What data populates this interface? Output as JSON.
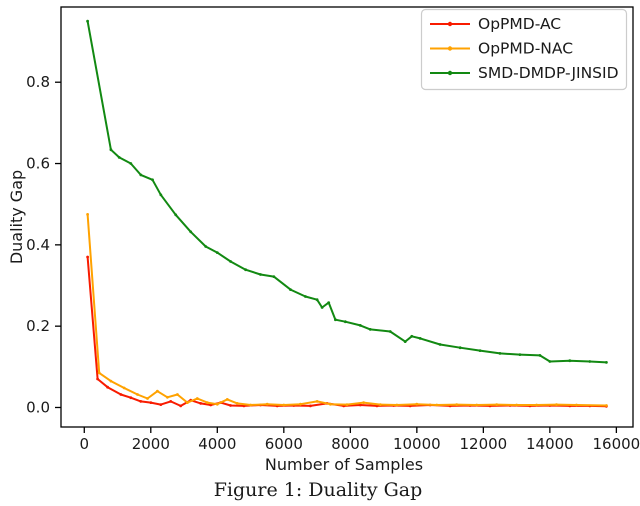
{
  "figure": {
    "caption": "Figure 1: Duality Gap",
    "background": "#ffffff",
    "spine_color": "#000000"
  },
  "chart_data": {
    "type": "line",
    "title": "",
    "xlabel": "Number of Samples",
    "ylabel": "Duality Gap",
    "xlim": [
      -700,
      16500
    ],
    "ylim": [
      -0.048,
      0.985
    ],
    "xticks": [
      0,
      2000,
      4000,
      6000,
      8000,
      10000,
      12000,
      14000,
      16000
    ],
    "xticklabels": [
      "0",
      "2000",
      "4000",
      "6000",
      "8000",
      "10000",
      "12000",
      "14000",
      "16000"
    ],
    "yticks": [
      0.0,
      0.2,
      0.4,
      0.6,
      0.8
    ],
    "yticklabels": [
      "0.0",
      "0.2",
      "0.4",
      "0.6",
      "0.8"
    ],
    "grid": false,
    "legend_position": "upper right",
    "marker": "point",
    "series": [
      {
        "name": "OpPMD-AC",
        "color": "#f81b00",
        "x": [
          100,
          400,
          700,
          1100,
          1400,
          1700,
          2000,
          2300,
          2600,
          2900,
          3200,
          3500,
          3800,
          4100,
          4400,
          4800,
          5300,
          5800,
          6300,
          6800,
          7300,
          7800,
          8300,
          8800,
          9300,
          9800,
          10400,
          11000,
          11600,
          12200,
          12800,
          13400,
          14000,
          14600,
          15200,
          15700
        ],
        "y": [
          0.37,
          0.07,
          0.05,
          0.032,
          0.024,
          0.015,
          0.012,
          0.007,
          0.015,
          0.004,
          0.018,
          0.01,
          0.006,
          0.012,
          0.005,
          0.004,
          0.006,
          0.004,
          0.005,
          0.004,
          0.01,
          0.004,
          0.006,
          0.004,
          0.005,
          0.004,
          0.006,
          0.004,
          0.005,
          0.004,
          0.005,
          0.004,
          0.005,
          0.004,
          0.004,
          0.003
        ]
      },
      {
        "name": "OpPMD-NAC",
        "color": "#ffa200",
        "x": [
          100,
          450,
          800,
          1200,
          1600,
          1900,
          2200,
          2500,
          2800,
          3100,
          3400,
          3700,
          4000,
          4300,
          4600,
          5000,
          5500,
          6000,
          6500,
          7000,
          7400,
          7900,
          8400,
          8900,
          9400,
          10000,
          10600,
          11200,
          11800,
          12400,
          13000,
          13600,
          14200,
          14800,
          15700
        ],
        "y": [
          0.475,
          0.085,
          0.065,
          0.048,
          0.032,
          0.022,
          0.04,
          0.025,
          0.032,
          0.012,
          0.022,
          0.012,
          0.008,
          0.02,
          0.01,
          0.006,
          0.008,
          0.006,
          0.008,
          0.015,
          0.008,
          0.007,
          0.012,
          0.007,
          0.006,
          0.008,
          0.006,
          0.007,
          0.006,
          0.007,
          0.006,
          0.006,
          0.007,
          0.006,
          0.005
        ]
      },
      {
        "name": "SMD-DMDP-JINSID",
        "color": "#128912",
        "x": [
          100,
          800,
          1050,
          1400,
          1700,
          2050,
          2300,
          2750,
          3200,
          3650,
          4000,
          4400,
          4850,
          5300,
          5700,
          6200,
          6650,
          7000,
          7150,
          7350,
          7550,
          7850,
          8300,
          8600,
          9200,
          9650,
          9850,
          10100,
          10700,
          11300,
          11900,
          12500,
          13100,
          13700,
          14000,
          14600,
          15200,
          15700
        ],
        "y": [
          0.95,
          0.634,
          0.615,
          0.6,
          0.572,
          0.56,
          0.523,
          0.474,
          0.432,
          0.396,
          0.381,
          0.359,
          0.339,
          0.327,
          0.322,
          0.29,
          0.273,
          0.265,
          0.246,
          0.258,
          0.216,
          0.211,
          0.202,
          0.192,
          0.187,
          0.162,
          0.175,
          0.17,
          0.155,
          0.147,
          0.14,
          0.133,
          0.13,
          0.128,
          0.113,
          0.115,
          0.113,
          0.111
        ]
      }
    ]
  }
}
